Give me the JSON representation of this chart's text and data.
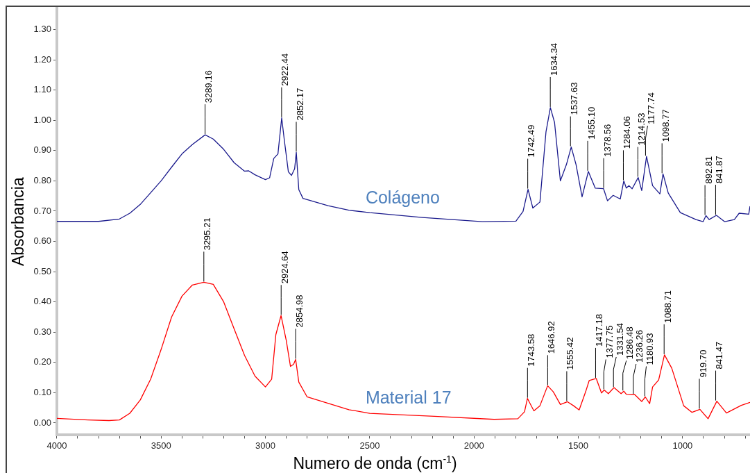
{
  "chart_data": {
    "type": "line",
    "xlabel": "Numero de onda (cm$^{-1}$)",
    "ylabel": "Absorbancia",
    "xlim": [
      4000,
      677
    ],
    "ylim": [
      -0.04,
      1.37
    ],
    "xticks": [
      4000,
      {
        "value": 3900,
        "label": null
      },
      {
        "value": 3800,
        "label": null
      },
      {
        "value": 3700,
        "label": null
      },
      {
        "value": 3600,
        "label": null
      },
      3500,
      {
        "value": 3400,
        "label": null
      },
      {
        "value": 3300,
        "label": null
      },
      {
        "value": 3200,
        "label": null
      },
      {
        "value": 3100,
        "label": null
      },
      3000,
      {
        "value": 2900,
        "label": null
      },
      {
        "value": 2800,
        "label": null
      },
      {
        "value": 2700,
        "label": null
      },
      {
        "value": 2600,
        "label": null
      },
      2500,
      {
        "value": 2400,
        "label": null
      },
      {
        "value": 2300,
        "label": null
      },
      {
        "value": 2200,
        "label": null
      },
      {
        "value": 2100,
        "label": null
      },
      2000,
      {
        "value": 1900,
        "label": null
      },
      {
        "value": 1800,
        "label": null
      },
      {
        "value": 1700,
        "label": null
      },
      {
        "value": 1600,
        "label": null
      },
      1500,
      {
        "value": 1400,
        "label": null
      },
      {
        "value": 1300,
        "label": null
      },
      {
        "value": 1200,
        "label": null
      },
      {
        "value": 1100,
        "label": null
      },
      1000,
      {
        "value": 900,
        "label": null
      },
      {
        "value": 800,
        "label": null
      },
      {
        "value": 700,
        "label": null
      }
    ],
    "yticks": [
      {
        "value": 0,
        "label": "0.00"
      },
      {
        "value": 0.1,
        "label": "0.10"
      },
      {
        "value": 0.2,
        "label": "0.20"
      },
      {
        "value": 0.3,
        "label": "0.30"
      },
      {
        "value": 0.4,
        "label": "0.40"
      },
      {
        "value": 0.5,
        "label": "0.50"
      },
      {
        "value": 0.6,
        "label": "0.60"
      },
      {
        "value": 0.7,
        "label": "0.70"
      },
      {
        "value": 0.8,
        "label": "0.80"
      },
      {
        "value": 0.9,
        "label": "0.90"
      },
      {
        "value": 1.0,
        "label": "1.00"
      },
      {
        "value": 1.1,
        "label": "1.10"
      },
      {
        "value": 1.2,
        "label": "1.20"
      },
      {
        "value": 1.3,
        "label": "1.30"
      }
    ],
    "grid": false,
    "legend": false,
    "marker": "none",
    "line_style": "solid",
    "series": [
      {
        "name": "Colágeno",
        "color": "#1a1a8c",
        "x": [
          4000,
          3800,
          3700,
          3650,
          3600,
          3500,
          3450,
          3400,
          3350,
          3289,
          3250,
          3200,
          3150,
          3100,
          3080,
          3050,
          3000,
          2980,
          2960,
          2940,
          2922,
          2910,
          2890,
          2875,
          2860,
          2852,
          2840,
          2820,
          2700,
          2600,
          2500,
          2247,
          1960,
          1799,
          1765,
          1741,
          1718,
          1684,
          1655,
          1634,
          1614,
          1586,
          1557,
          1534,
          1511,
          1482,
          1452,
          1419,
          1379,
          1360,
          1333,
          1299,
          1282,
          1270,
          1257,
          1242,
          1213,
          1196,
          1173,
          1144,
          1109,
          1094,
          1069,
          1011,
          936,
          902,
          888,
          873,
          838,
          798,
          752,
          729,
          683,
          677
        ],
        "values": [
          0.666,
          0.666,
          0.674,
          0.693,
          0.722,
          0.8,
          0.845,
          0.889,
          0.92,
          0.952,
          0.938,
          0.904,
          0.86,
          0.832,
          0.833,
          0.82,
          0.804,
          0.81,
          0.874,
          0.889,
          1.008,
          0.938,
          0.83,
          0.818,
          0.84,
          0.894,
          0.771,
          0.742,
          0.718,
          0.703,
          0.695,
          0.679,
          0.665,
          0.667,
          0.699,
          0.772,
          0.71,
          0.73,
          0.962,
          1.042,
          0.993,
          0.8,
          0.854,
          0.912,
          0.854,
          0.747,
          0.831,
          0.776,
          0.774,
          0.734,
          0.752,
          0.74,
          0.8,
          0.776,
          0.784,
          0.774,
          0.811,
          0.768,
          0.881,
          0.784,
          0.757,
          0.823,
          0.76,
          0.695,
          0.672,
          0.665,
          0.685,
          0.672,
          0.686,
          0.665,
          0.672,
          0.693,
          0.69,
          0.716
        ]
      },
      {
        "name": "Material 17",
        "color": "#ff0000",
        "x": [
          4000,
          3850,
          3750,
          3700,
          3650,
          3600,
          3550,
          3500,
          3450,
          3400,
          3350,
          3295,
          3250,
          3200,
          3150,
          3100,
          3050,
          3000,
          2970,
          2950,
          2925,
          2900,
          2880,
          2865,
          2855,
          2840,
          2800,
          2700,
          2600,
          2500,
          2190,
          1904,
          1790,
          1758,
          1744,
          1713,
          1684,
          1647,
          1620,
          1586,
          1552,
          1523,
          1496,
          1465,
          1448,
          1414,
          1389,
          1376,
          1356,
          1329,
          1295,
          1282,
          1270,
          1230,
          1196,
          1179,
          1158,
          1144,
          1115,
          1087,
          1052,
          995,
          955,
          917,
          878,
          836,
          790,
          719,
          677
        ],
        "values": [
          0.015,
          0.01,
          0.008,
          0.01,
          0.032,
          0.076,
          0.145,
          0.243,
          0.35,
          0.419,
          0.456,
          0.465,
          0.458,
          0.4,
          0.311,
          0.223,
          0.155,
          0.119,
          0.145,
          0.292,
          0.355,
          0.272,
          0.187,
          0.194,
          0.21,
          0.135,
          0.086,
          0.065,
          0.044,
          0.032,
          0.022,
          0.012,
          0.014,
          0.037,
          0.081,
          0.04,
          0.057,
          0.123,
          0.103,
          0.061,
          0.07,
          0.057,
          0.043,
          0.103,
          0.14,
          0.147,
          0.099,
          0.109,
          0.097,
          0.117,
          0.097,
          0.105,
          0.095,
          0.094,
          0.071,
          0.086,
          0.064,
          0.119,
          0.142,
          0.225,
          0.181,
          0.057,
          0.035,
          0.045,
          0.014,
          0.072,
          0.033,
          0.058,
          0.068
        ]
      }
    ],
    "annotations": [
      {
        "text": "3289.16",
        "x": 3289.16,
        "y": 0.952
      },
      {
        "text": "2922.44",
        "x": 2922.44,
        "y": 1.008
      },
      {
        "text": "2852.17",
        "x": 2852.17,
        "y": 0.894
      },
      {
        "text": "1742.49",
        "x": 1742.49,
        "y": 0.772
      },
      {
        "text": "1634.34",
        "x": 1634.34,
        "y": 1.042
      },
      {
        "text": "1537.63",
        "x": 1537.63,
        "y": 0.912
      },
      {
        "text": "1455.10",
        "x": 1455.1,
        "y": 0.831
      },
      {
        "text": "1378.56",
        "x": 1378.56,
        "y": 0.774
      },
      {
        "text": "1284.06",
        "x": 1284.06,
        "y": 0.8
      },
      {
        "text": "1214.53",
        "x": 1214.53,
        "y": 0.811
      },
      {
        "text": "1177.74",
        "x": 1177.74,
        "y": 0.881
      },
      {
        "text": "1098.77",
        "x": 1098.77,
        "y": 0.823
      },
      {
        "text": "892.81",
        "x": 892.81,
        "y": 0.685
      },
      {
        "text": "841.87",
        "x": 841.87,
        "y": 0.686
      },
      {
        "text": "3295.21",
        "x": 3295.21,
        "y": 0.465
      },
      {
        "text": "2924.64",
        "x": 2924.64,
        "y": 0.355
      },
      {
        "text": "2854.98",
        "x": 2854.98,
        "y": 0.21
      },
      {
        "text": "1743.58",
        "x": 1743.58,
        "y": 0.081
      },
      {
        "text": "1646.92",
        "x": 1646.92,
        "y": 0.123
      },
      {
        "text": "1555.42",
        "x": 1555.42,
        "y": 0.07
      },
      {
        "text": "1417.18",
        "x": 1417.18,
        "y": 0.147
      },
      {
        "text": "1377.75",
        "x": 1377.75,
        "y": 0.109
      },
      {
        "text": "1331.54",
        "x": 1331.54,
        "y": 0.117
      },
      {
        "text": "1286.48",
        "x": 1286.48,
        "y": 0.105
      },
      {
        "text": "1236.26",
        "x": 1236.26,
        "y": 0.094
      },
      {
        "text": "1180.93",
        "x": 1180.93,
        "y": 0.086
      },
      {
        "text": "1088.71",
        "x": 1088.71,
        "y": 0.225
      },
      {
        "text": "919.70",
        "x": 919.7,
        "y": 0.045
      },
      {
        "text": "841.47",
        "x": 841.47,
        "y": 0.072
      }
    ]
  }
}
